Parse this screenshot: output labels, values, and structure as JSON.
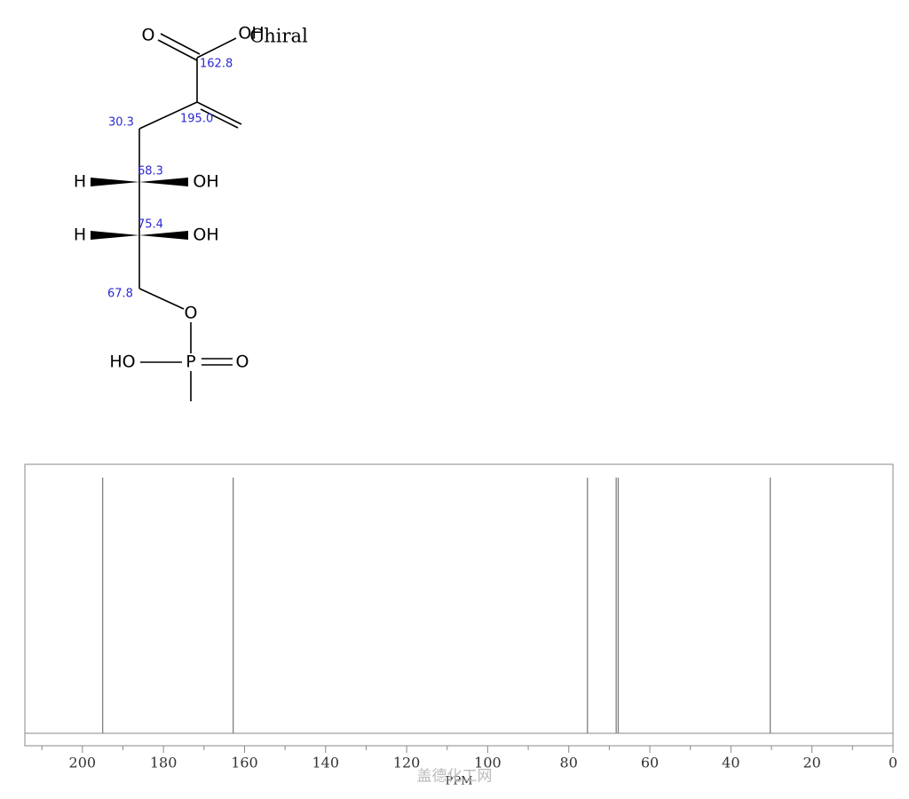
{
  "structure": {
    "atoms": [
      "O",
      "OH",
      "Chiral",
      "H",
      "OH",
      "H",
      "OH",
      "O",
      "HO",
      "P",
      "O"
    ]
  },
  "chart_data": {
    "type": "stem",
    "values": [
      195,
      162.8,
      75.4,
      68.3,
      67.8,
      30.3
    ],
    "value_labels": [
      "195.0",
      "162.8",
      "75.4",
      "68.3",
      "67.8",
      "30.3"
    ],
    "color": "#808080",
    "xlim": [
      214.2,
      0
    ],
    "xticks": [
      200,
      180,
      160,
      140,
      120,
      100,
      80,
      60,
      40,
      20,
      0
    ],
    "xminorticks": [
      210,
      190,
      170,
      150,
      130,
      110,
      90,
      70,
      50,
      30,
      10
    ],
    "xlabel": "PPM",
    "watermark": "盖德化工网"
  }
}
